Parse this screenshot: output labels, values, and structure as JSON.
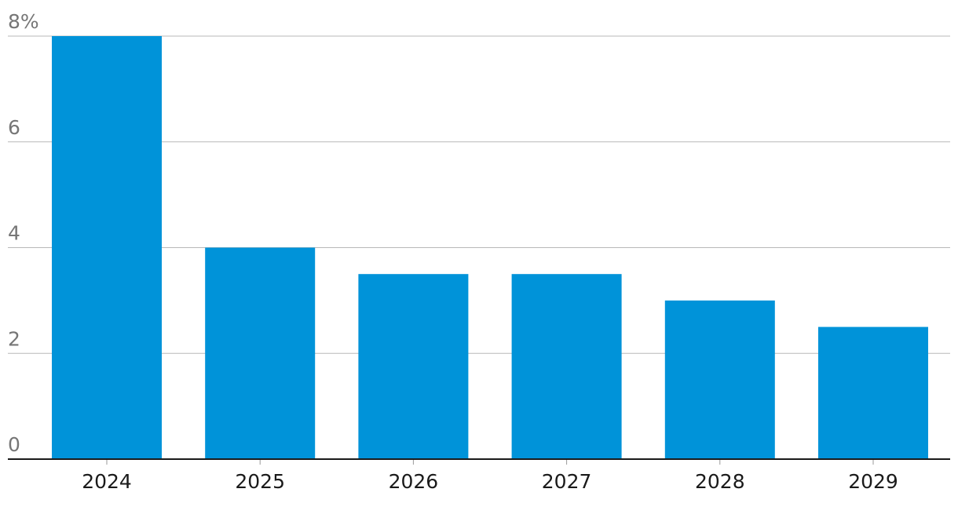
{
  "chart_data": {
    "type": "bar",
    "categories": [
      "2024",
      "2025",
      "2026",
      "2027",
      "2028",
      "2029"
    ],
    "values": [
      8,
      4,
      3.5,
      3.5,
      3,
      2.5
    ],
    "y_unit": "%",
    "ylim": [
      0,
      8
    ],
    "y_ticks": [
      0,
      2,
      4,
      6,
      8
    ],
    "y_tick_labels": [
      "0",
      "2",
      "4",
      "6",
      "8%"
    ],
    "grid": true,
    "legend": "none",
    "bar_color": "#0093d9",
    "title": "",
    "xlabel": "",
    "ylabel": ""
  }
}
